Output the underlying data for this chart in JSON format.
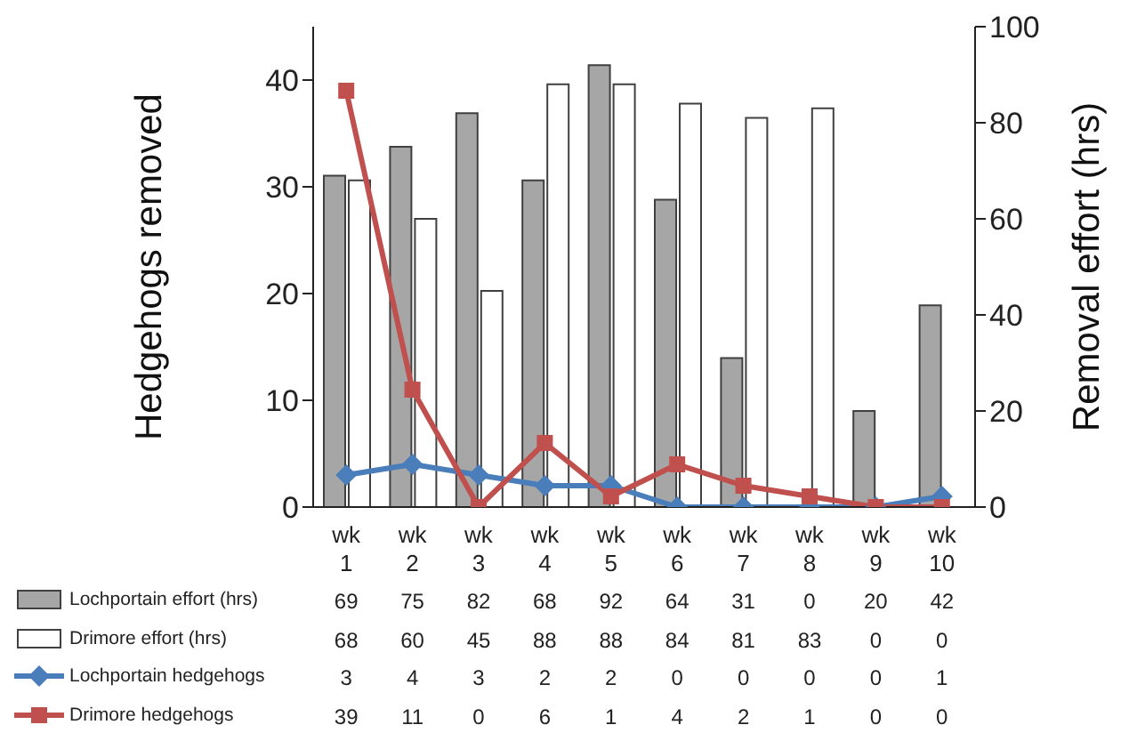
{
  "chart_data": {
    "type": "bar",
    "ylabel": "Hedgehogs removed",
    "y2label": "Removal effort (hrs)",
    "categories": [
      "wk 1",
      "wk 2",
      "wk 3",
      "wk 4",
      "wk 5",
      "wk 6",
      "wk 7",
      "wk 8",
      "wk 9",
      "wk 10"
    ],
    "series": [
      {
        "name": "Lochportain effort (hrs)",
        "axis": "y2",
        "color": "#a6a6a6",
        "values": [
          69,
          75,
          82,
          68,
          92,
          64,
          31,
          0,
          20,
          42
        ]
      },
      {
        "name": "Drimore effort (hrs)",
        "axis": "y2",
        "color": "#ffffff",
        "values": [
          68,
          60,
          45,
          88,
          88,
          84,
          81,
          83,
          0,
          0
        ]
      },
      {
        "name": "Lochportain hedgehogs",
        "type": "line",
        "color": "#4a7ebb",
        "marker": "diamond",
        "values": [
          3,
          4,
          3,
          2,
          2,
          0,
          0,
          0,
          0,
          1
        ]
      },
      {
        "name": "Drimore hedgehogs",
        "type": "line",
        "color": "#c0504d",
        "marker": "square",
        "values": [
          39,
          11,
          0,
          6,
          1,
          4,
          2,
          1,
          0,
          0
        ]
      }
    ],
    "ylim": [
      0,
      45
    ],
    "yticks": [
      0,
      10,
      20,
      30,
      40
    ],
    "y2lim": [
      0,
      100
    ],
    "y2ticks": [
      0,
      20,
      40,
      60,
      80,
      100
    ],
    "grid": false,
    "legend": "bottom",
    "data_labels": true
  }
}
